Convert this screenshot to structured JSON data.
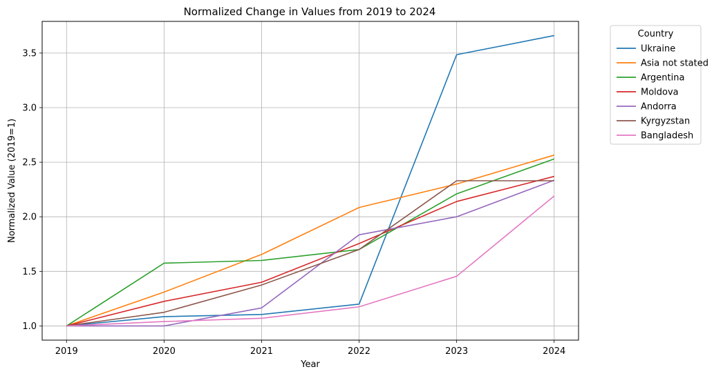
{
  "chart_data": {
    "type": "line",
    "title": "Normalized Change in Values from 2019 to 2024",
    "xlabel": "Year",
    "ylabel": "Normalized Value (2019=1)",
    "x": [
      2019,
      2020,
      2021,
      2022,
      2023,
      2024
    ],
    "xticks": [
      "2019",
      "2020",
      "2021",
      "2022",
      "2023",
      "2024"
    ],
    "yticks": [
      1.0,
      1.5,
      2.0,
      2.5,
      3.0,
      3.5
    ],
    "ytick_labels": [
      "1.0",
      "1.5",
      "2.0",
      "2.5",
      "3.0",
      "3.5"
    ],
    "xlim": [
      2018.75,
      2024.25
    ],
    "ylim": [
      0.87,
      3.79
    ],
    "grid": true,
    "legend": {
      "title": "Country",
      "placement": "outside-top-right"
    },
    "series": [
      {
        "name": "Ukraine",
        "color": "#1f77b4",
        "values": [
          1.0,
          1.085,
          1.105,
          1.2,
          3.485,
          3.66
        ]
      },
      {
        "name": "Asia not stated",
        "color": "#ff7f0e",
        "values": [
          1.0,
          1.31,
          1.655,
          2.085,
          2.3,
          2.565
        ]
      },
      {
        "name": "Argentina",
        "color": "#2ca02c",
        "values": [
          1.0,
          1.575,
          1.6,
          1.7,
          2.21,
          2.53
        ]
      },
      {
        "name": "Moldova",
        "color": "#d62728",
        "values": [
          1.0,
          1.225,
          1.4,
          1.755,
          2.14,
          2.37
        ]
      },
      {
        "name": "Andorra",
        "color": "#9467bd",
        "values": [
          1.0,
          1.0,
          1.165,
          1.835,
          2.0,
          2.335
        ]
      },
      {
        "name": "Kyrgyzstan",
        "color": "#8c564b",
        "values": [
          1.0,
          1.125,
          1.375,
          1.7,
          2.33,
          2.33
        ]
      },
      {
        "name": "Bangladesh",
        "color": "#e377c2",
        "values": [
          1.0,
          1.04,
          1.07,
          1.175,
          1.455,
          2.19
        ]
      }
    ]
  }
}
